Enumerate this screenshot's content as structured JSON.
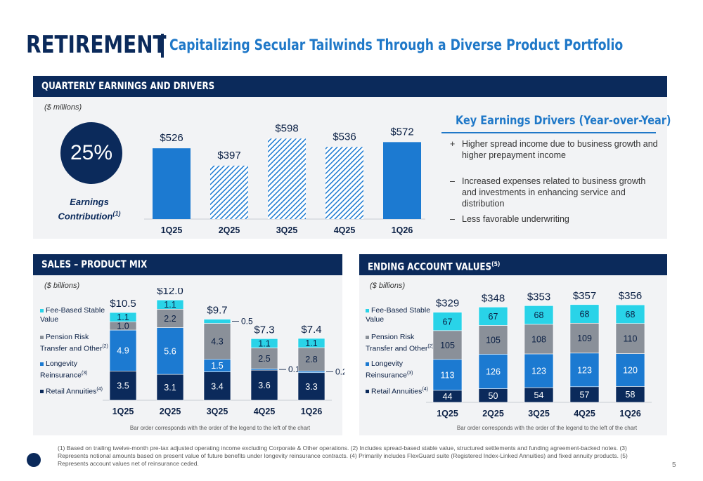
{
  "header": {
    "title": "RETIREMENT",
    "subtitle": "Capitalizing Secular Tailwinds Through a Diverse Product Portfolio"
  },
  "earnings": {
    "section_title": "QUARTERLY EARNINGS AND DRIVERS",
    "units": "($ millions)",
    "contribution_pct": "25%",
    "contribution_label_1": "Earnings",
    "contribution_label_2": "Contribution",
    "contribution_sup": "(1)",
    "drivers_title": "Key Earnings Drivers (Year-over-Year)",
    "drivers": [
      {
        "symbol": "+",
        "text": "Higher spread income due to business growth and higher prepayment income"
      },
      {
        "symbol": "–",
        "text": "Increased expenses related to business growth and investments in enhancing service and distribution"
      },
      {
        "symbol": "–",
        "text": "Less favorable underwriting"
      }
    ]
  },
  "sales": {
    "section_title": "SALES – PRODUCT MIX",
    "units": "($ billions)",
    "note": "Bar order corresponds with the order of the legend to the left of the chart"
  },
  "accounts": {
    "section_title": "ENDING ACCOUNT VALUES",
    "section_sup": "(5)",
    "units": "($ billions)",
    "note": "Bar order corresponds with the order of the legend to the left of the chart"
  },
  "legend": [
    {
      "label_1": "Fee-Based Stable",
      "label_2": "Value",
      "sup": "",
      "color": "#29d3e8"
    },
    {
      "label_1": "Pension Risk",
      "label_2": "Transfer and Other",
      "sup": "(2)",
      "color": "#8a9099"
    },
    {
      "label_1": "Longevity",
      "label_2": "Reinsurance",
      "sup": "(3)",
      "color": "#1c7ad1"
    },
    {
      "label_1": "Retail Annuities",
      "label_2": "",
      "sup": "(4)",
      "color": "#0b2a5b"
    }
  ],
  "chart_data": [
    {
      "type": "bar",
      "title": "QUARTERLY EARNINGS AND DRIVERS",
      "ylabel": "($ millions)",
      "categories": [
        "1Q25",
        "2Q25",
        "3Q25",
        "4Q25",
        "1Q26"
      ],
      "values": [
        526,
        397,
        598,
        536,
        572
      ],
      "labels": [
        "$526",
        "$397",
        "$598",
        "$536",
        "$572"
      ],
      "hatched": [
        false,
        true,
        true,
        true,
        false
      ],
      "color": "#1c7ad1"
    },
    {
      "type": "bar",
      "stacked": true,
      "title": "SALES – PRODUCT MIX",
      "ylabel": "($ billions)",
      "categories": [
        "1Q25",
        "2Q25",
        "3Q25",
        "4Q25",
        "1Q26"
      ],
      "totals": [
        "$10.5",
        "$12.0",
        "$9.7",
        "$7.3",
        "$7.4"
      ],
      "series": [
        {
          "name": "Retail Annuities",
          "values": [
            3.5,
            3.1,
            3.4,
            3.6,
            3.3
          ],
          "color": "#0b2a5b"
        },
        {
          "name": "Longevity Reinsurance",
          "values": [
            4.9,
            5.6,
            1.5,
            0.1,
            0.2
          ],
          "color": "#1c7ad1"
        },
        {
          "name": "Pension Risk Transfer and Other",
          "values": [
            1.0,
            2.2,
            4.3,
            2.5,
            2.8
          ],
          "color": "#8a9099"
        },
        {
          "name": "Fee-Based Stable Value",
          "values": [
            1.1,
            1.1,
            0.5,
            1.1,
            1.1
          ],
          "color": "#29d3e8"
        }
      ]
    },
    {
      "type": "bar",
      "stacked": true,
      "title": "ENDING ACCOUNT VALUES",
      "ylabel": "($ billions)",
      "categories": [
        "1Q25",
        "2Q25",
        "3Q25",
        "4Q25",
        "1Q26"
      ],
      "totals": [
        "$329",
        "$348",
        "$353",
        "$357",
        "$356"
      ],
      "series": [
        {
          "name": "Retail Annuities",
          "values": [
            44,
            50,
            54,
            57,
            58
          ],
          "color": "#0b2a5b"
        },
        {
          "name": "Longevity Reinsurance",
          "values": [
            113,
            126,
            123,
            123,
            120
          ],
          "color": "#1c7ad1"
        },
        {
          "name": "Pension Risk Transfer and Other",
          "values": [
            105,
            105,
            108,
            109,
            110
          ],
          "color": "#8a9099"
        },
        {
          "name": "Fee-Based Stable Value",
          "values": [
            67,
            67,
            68,
            68,
            68
          ],
          "color": "#29d3e8"
        }
      ]
    }
  ],
  "footnote": "(1) Based on trailing twelve-month pre-tax adjusted operating income excluding Corporate & Other operations. (2) Includes spread-based stable value, structured settlements and funding agreement-backed notes. (3) Represents notional amounts based on present value of future benefits under longevity reinsurance contracts. (4) Primarily includes FlexGuard suite (Registered Index-Linked Annuities) and fixed annuity products. (5) Represents account values net of reinsurance ceded.",
  "page_number": "5"
}
